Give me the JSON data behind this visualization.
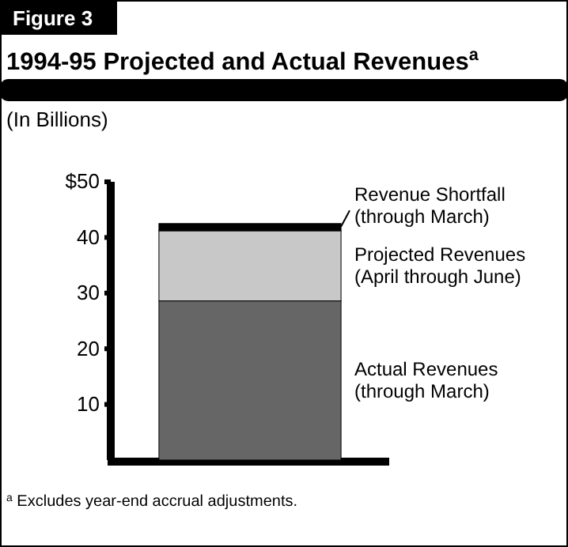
{
  "chart_data": {
    "type": "bar",
    "title": "1994-95 Projected and Actual Revenues$^{a}$",
    "subtitle": "(In Billions)",
    "annotations": [
      "Figure 3",
      "$^{a}$ Excludes year-end accrual adjustments."
    ],
    "categories": [
      null
    ],
    "stacked": true,
    "series": [
      {
        "name": "Actual Revenues (through March)",
        "color": "#666666",
        "values": [
          28.6
        ]
      },
      {
        "name": "Projected Revenues (April through June)",
        "color": "#c8c8c8",
        "values": [
          12.6
        ]
      },
      {
        "name": "Revenue Shortfall (through March)",
        "color": "#000000",
        "values": [
          1.3
        ]
      }
    ],
    "ylim": [
      0,
      50
    ],
    "yticks": [
      {
        "value": 10,
        "label": "10"
      },
      {
        "value": 20,
        "label": "20"
      },
      {
        "value": 30,
        "label": "30"
      },
      {
        "value": 40,
        "label": "40"
      },
      {
        "value": 50,
        "label": "$50"
      }
    ],
    "grid": false
  }
}
